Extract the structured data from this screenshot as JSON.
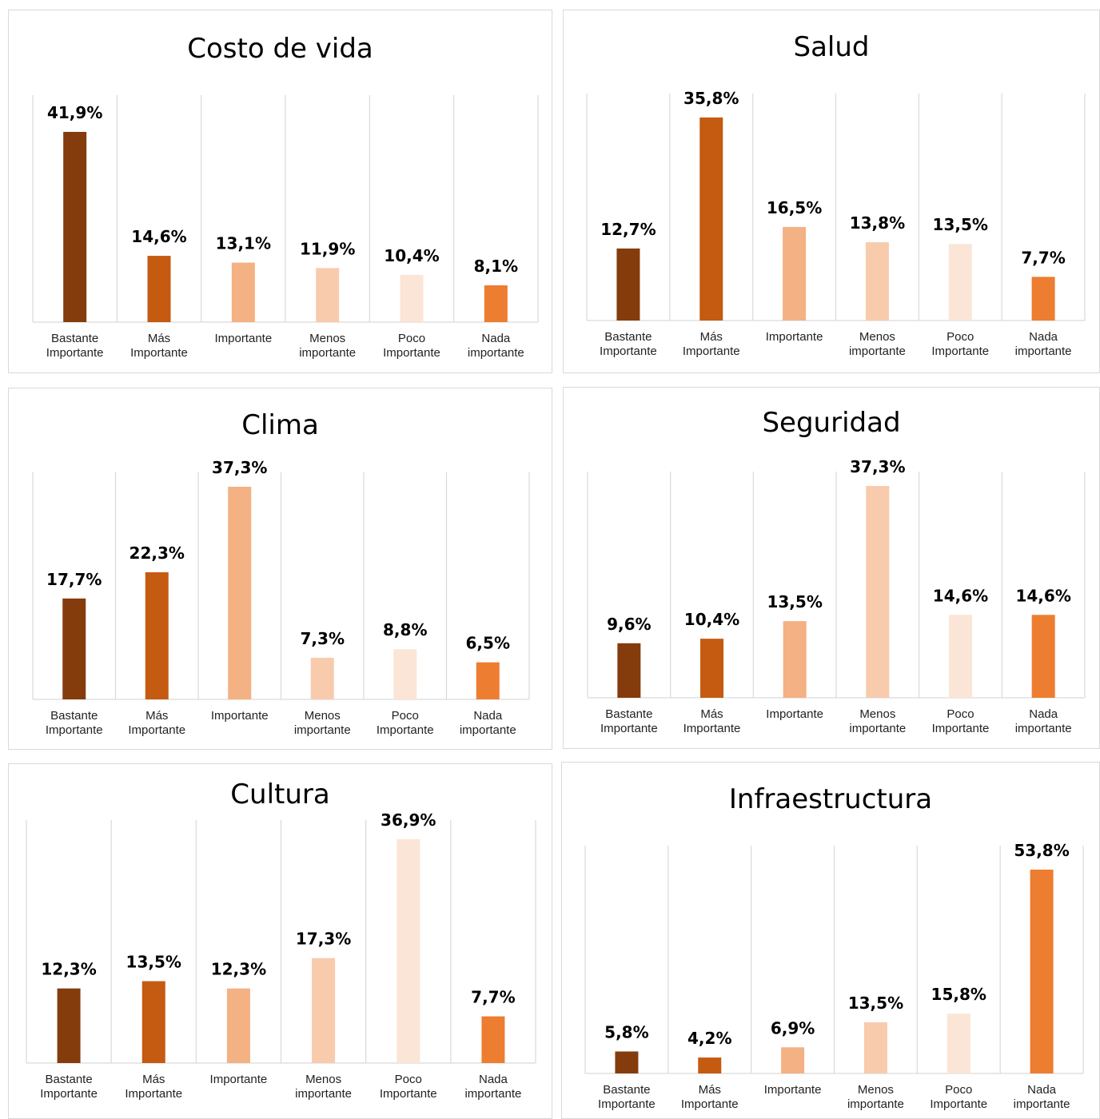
{
  "categories": [
    "Bastante Importante",
    "Más Importante",
    "Importante",
    "Menos importante",
    "Poco Importante",
    "Nada importante"
  ],
  "category_lines": [
    [
      "Bastante",
      "Importante"
    ],
    [
      "Más",
      "Importante"
    ],
    [
      "Importante"
    ],
    [
      "Menos",
      "importante"
    ],
    [
      "Poco",
      "Importante"
    ],
    [
      "Nada",
      "importante"
    ]
  ],
  "colors": [
    "#843c0c",
    "#c55a11",
    "#f4b183",
    "#f8cbad",
    "#fbe5d6",
    "#ed7d31"
  ],
  "chart_data": [
    {
      "type": "bar",
      "title": "Costo de vida",
      "values": [
        41.9,
        14.6,
        13.1,
        11.9,
        10.4,
        8.1
      ],
      "labels": [
        "41,9%",
        "14,6%",
        "13,1%",
        "11,9%",
        "10,4%",
        "8,1%"
      ]
    },
    {
      "type": "bar",
      "title": "Salud",
      "values": [
        12.7,
        35.8,
        16.5,
        13.8,
        13.5,
        7.7
      ],
      "labels": [
        "12,7%",
        "35,8%",
        "16,5%",
        "13,8%",
        "13,5%",
        "7,7%"
      ]
    },
    {
      "type": "bar",
      "title": "Clima",
      "values": [
        17.7,
        22.3,
        37.3,
        7.3,
        8.8,
        6.5
      ],
      "labels": [
        "17,7%",
        "22,3%",
        "37,3%",
        "7,3%",
        "8,8%",
        "6,5%"
      ]
    },
    {
      "type": "bar",
      "title": "Seguridad",
      "values": [
        9.6,
        10.4,
        13.5,
        37.3,
        14.6,
        14.6
      ],
      "labels": [
        "9,6%",
        "10,4%",
        "13,5%",
        "37,3%",
        "14,6%",
        "14,6%"
      ]
    },
    {
      "type": "bar",
      "title": "Cultura",
      "values": [
        12.3,
        13.5,
        12.3,
        17.3,
        36.9,
        7.7
      ],
      "labels": [
        "12,3%",
        "13,5%",
        "12,3%",
        "17,3%",
        "36,9%",
        "7,7%"
      ]
    },
    {
      "type": "bar",
      "title": "Infraestructura",
      "values": [
        5.8,
        4.2,
        6.9,
        13.5,
        15.8,
        53.8
      ],
      "labels": [
        "5,8%",
        "4,2%",
        "6,9%",
        "13,5%",
        "15,8%",
        "53,8%"
      ]
    }
  ]
}
